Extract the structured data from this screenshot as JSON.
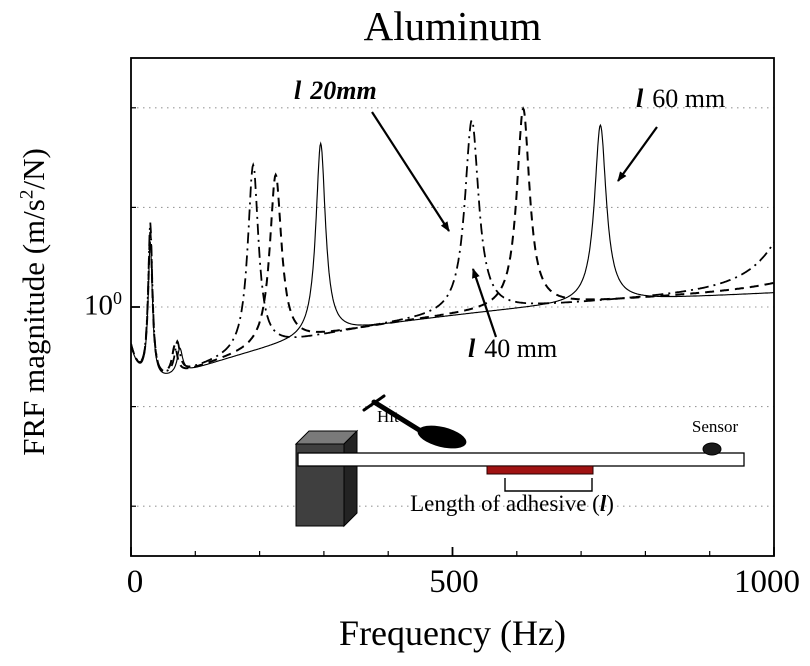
{
  "title": "Aluminum",
  "axes": {
    "x_label": "Frequency (Hz)",
    "x_tick_labels": [
      "0",
      "500",
      "1000"
    ],
    "y_label_prefix": "FRF magnitude (m/s",
    "y_label_sup": "2",
    "y_label_suffix": "/N)",
    "y_tick_base": "10",
    "y_tick_exp": "0"
  },
  "annotations": {
    "len20": {
      "symbol": "l",
      "value": "20mm"
    },
    "len60": {
      "symbol": "l",
      "value": "60 mm"
    },
    "len40": {
      "symbol": "l",
      "value": "40 mm"
    }
  },
  "inset": {
    "hit": "Hit",
    "sensor": "Sensor",
    "caption_prefix": "Length of adhesive (",
    "caption_symbol": "l",
    "caption_suffix": ")"
  },
  "colors": {
    "curve": "#000000",
    "grid": "#9a9a9a",
    "adhesive": "#a01212",
    "block_front": "#3f3f3f",
    "block_top": "#7a7a7a",
    "block_side": "#232323"
  },
  "chart_data": {
    "type": "line",
    "title": "Aluminum",
    "xlabel": "Frequency (Hz)",
    "ylabel": "FRF magnitude (m/s^2/N)",
    "xlim": [
      0,
      1000
    ],
    "y_scale": "log10",
    "ylim_log10": [
      -0.8,
      0.8
    ],
    "x_major_ticks": [
      0,
      500,
      1000
    ],
    "x_minor_tick_step": 100,
    "y_labeled_tick": {
      "log10": 0,
      "label": "10^0"
    },
    "grid_log10_levels": [
      0.64,
      0.32,
      0,
      -0.32,
      -0.64
    ],
    "legend_position": "annotated-on-plot",
    "baseline": {
      "b0": -0.28,
      "b1": 0.34,
      "tau": 380,
      "b2": 0.15,
      "tau2": 15
    },
    "series": [
      {
        "name": "adhesive length 20 mm",
        "line": "dash-dot",
        "peak_frequencies_hz": [
          30,
          190,
          530
        ],
        "peaks": [
          {
            "f": 30,
            "h": 0.5,
            "w": 4
          },
          {
            "f": 72,
            "h": 0.1,
            "w": 5
          },
          {
            "f": 190,
            "h": 0.6,
            "w": 10
          },
          {
            "f": 530,
            "h": 0.62,
            "w": 13
          },
          {
            "f": 1060,
            "h": 0.42,
            "w": 50
          }
        ]
      },
      {
        "name": "adhesive length 40 mm",
        "line": "dashed",
        "peak_frequencies_hz": [
          30,
          225,
          610
        ],
        "peaks": [
          {
            "f": 30,
            "h": 0.47,
            "w": 4
          },
          {
            "f": 68,
            "h": 0.09,
            "w": 5
          },
          {
            "f": 225,
            "h": 0.55,
            "w": 11
          },
          {
            "f": 610,
            "h": 0.64,
            "w": 12
          },
          {
            "f": 1200,
            "h": 0.5,
            "w": 60
          }
        ]
      },
      {
        "name": "adhesive length 60 mm",
        "line": "solid",
        "peak_frequencies_hz": [
          30,
          295,
          730
        ],
        "peaks": [
          {
            "f": 30,
            "h": 0.44,
            "w": 4
          },
          {
            "f": 76,
            "h": 0.08,
            "w": 5
          },
          {
            "f": 295,
            "h": 0.62,
            "w": 9
          },
          {
            "f": 730,
            "h": 0.57,
            "w": 11
          },
          {
            "f": 1430,
            "h": 0.5,
            "w": 60
          }
        ]
      }
    ]
  }
}
